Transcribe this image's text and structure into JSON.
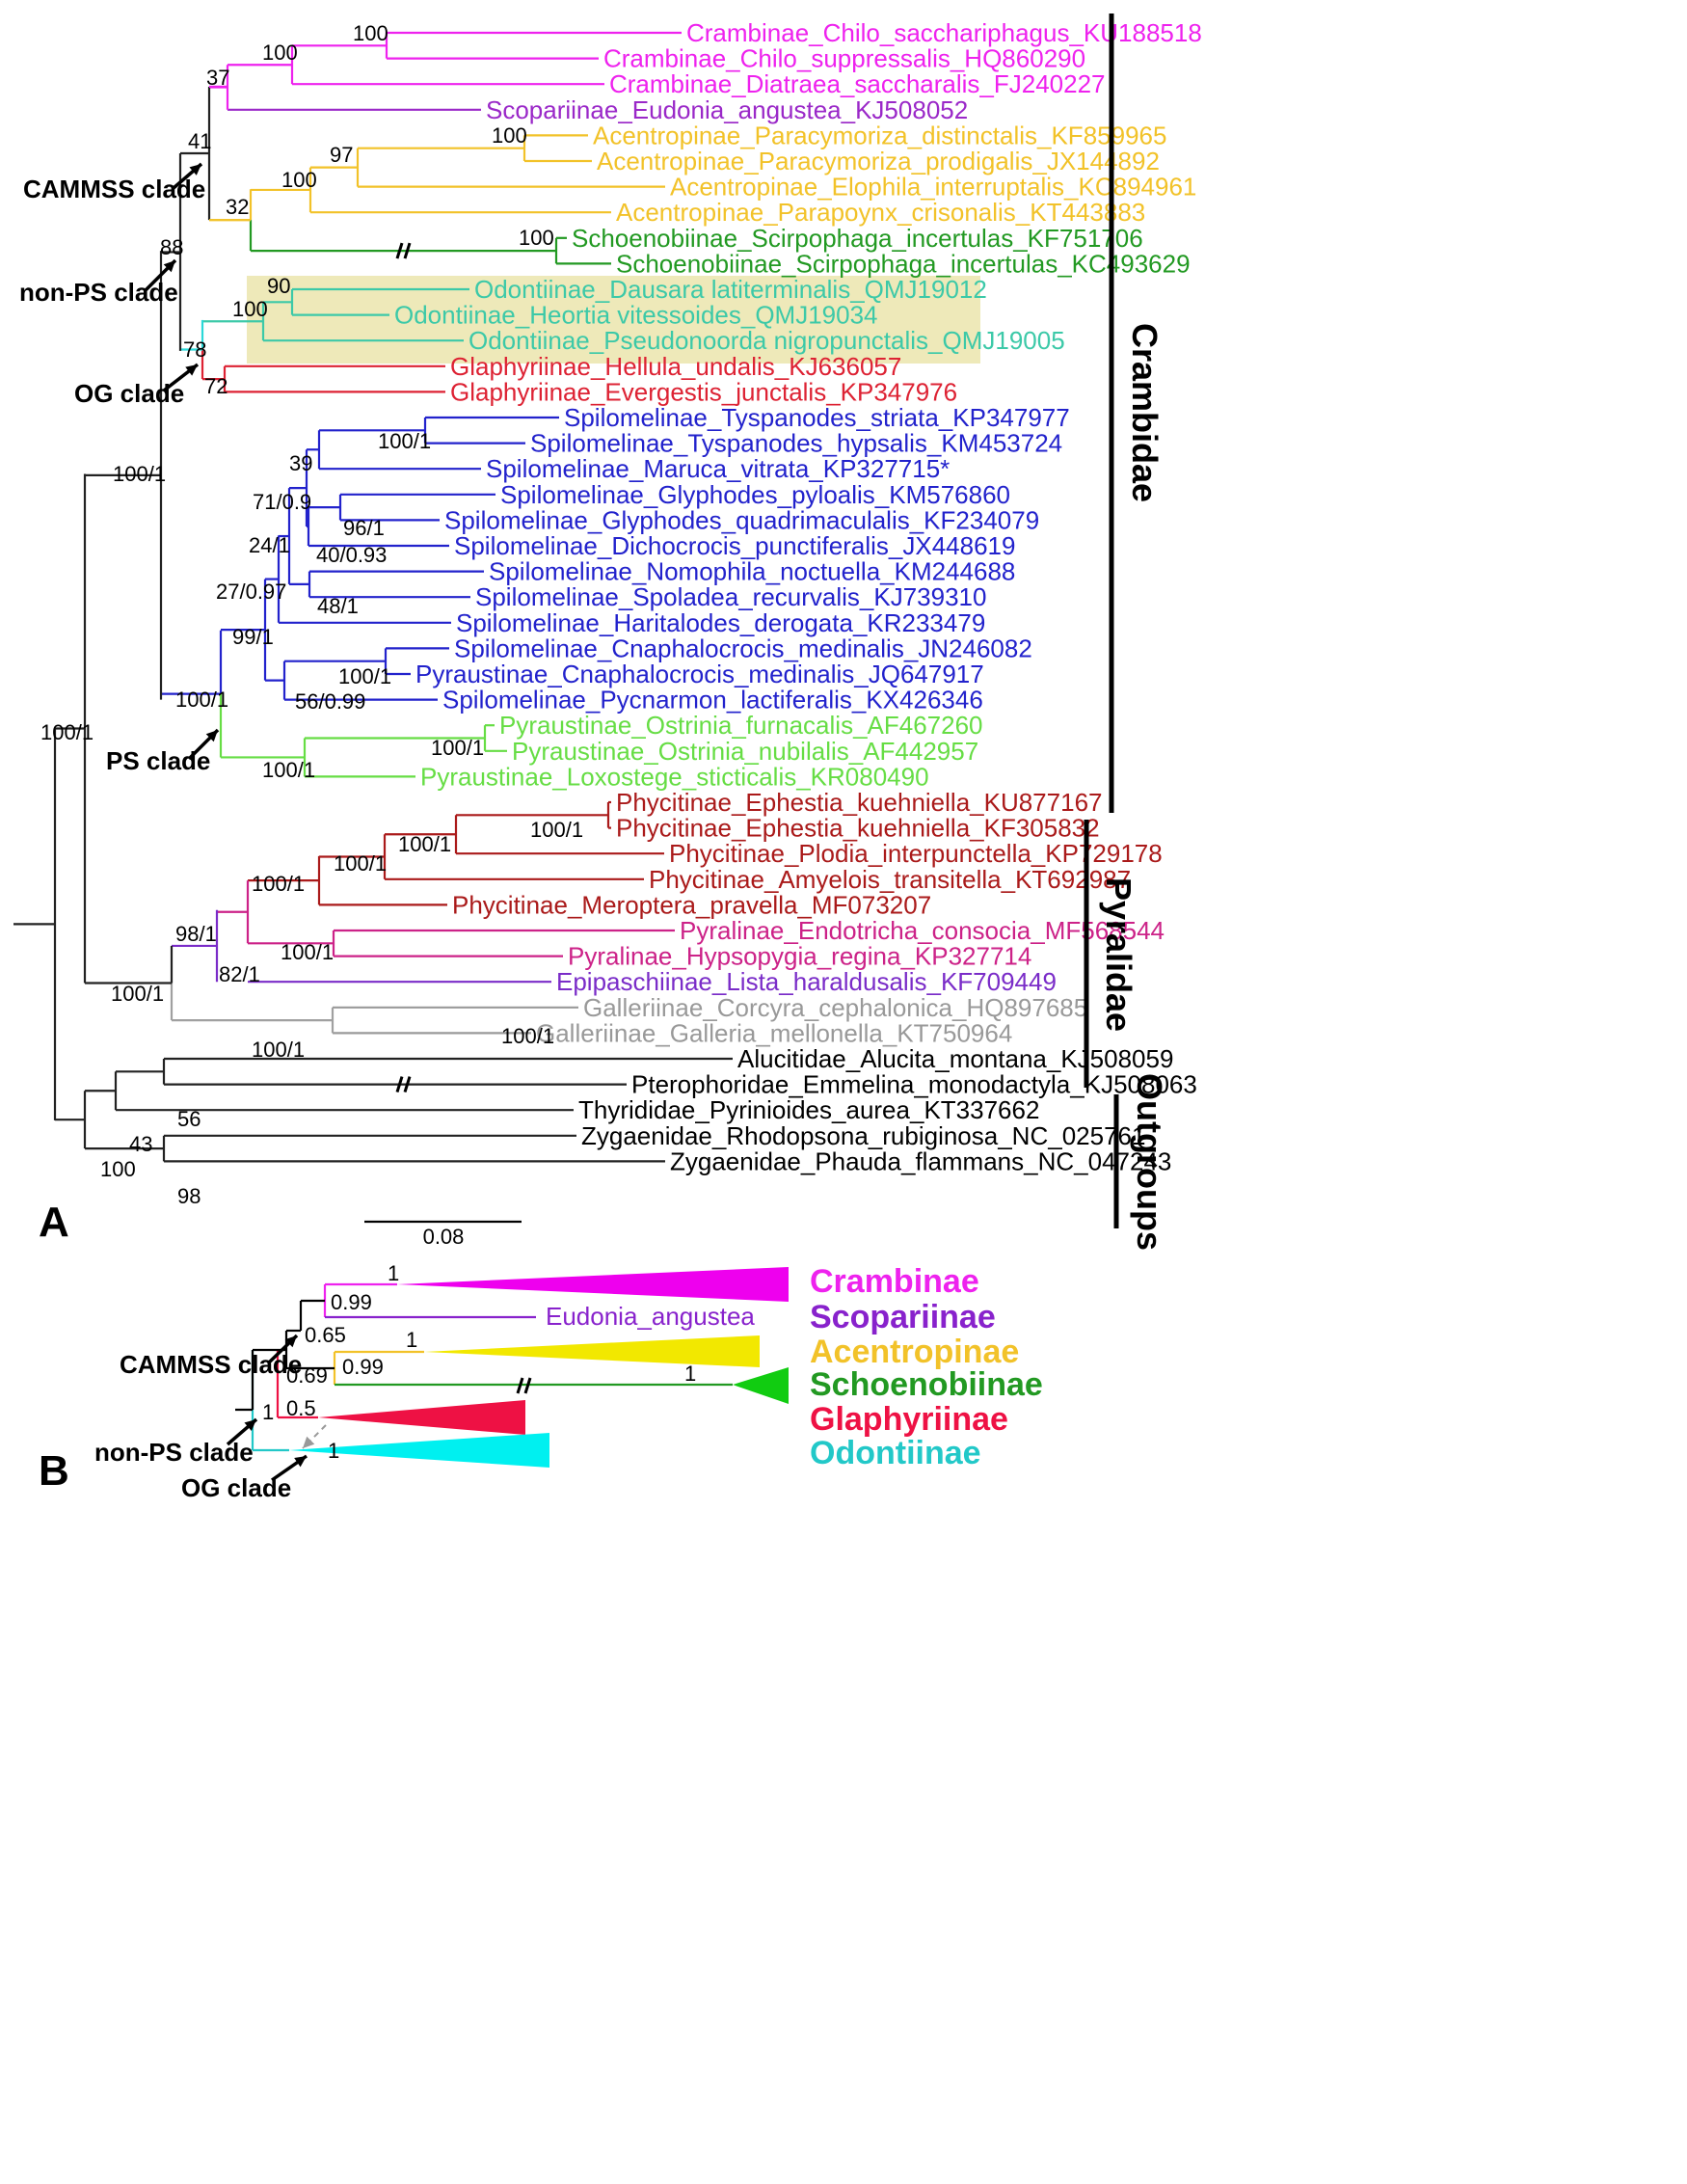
{
  "panel_a": {
    "label": "A",
    "scale_bar": "0.08",
    "families": [
      {
        "name": "Crambidae"
      },
      {
        "name": "Pyralidae"
      },
      {
        "name": "Outgroups"
      }
    ],
    "clade_notes": [
      {
        "label": "CAMMSS clade"
      },
      {
        "label": "non-PS clade"
      },
      {
        "label": "OG clade"
      },
      {
        "label": "PS clade"
      }
    ],
    "taxa": [
      {
        "label": "Crambinae_Chilo_sacchariphagus_KU188518",
        "color": "#ee22ee"
      },
      {
        "label": "Crambinae_Chilo_suppressalis_HQ860290",
        "color": "#ee22ee"
      },
      {
        "label": "Crambinae_Diatraea_saccharalis_FJ240227",
        "color": "#ee22ee"
      },
      {
        "label": "Scopariinae_Eudonia_angustea_KJ508052",
        "color": "#9a28c8"
      },
      {
        "label": "Acentropinae_Paracymoriza_distinctalis_KF859965",
        "color": "#f2c229"
      },
      {
        "label": "Acentropinae_Paracymoriza_prodigalis_JX144892",
        "color": "#f2c229"
      },
      {
        "label": "Acentropinae_Elophila_interruptalis_KC894961",
        "color": "#f2c229"
      },
      {
        "label": "Acentropinae_Parapoynx_crisonalis_KT443883",
        "color": "#f2c229"
      },
      {
        "label": "Schoenobiinae_Scirpophaga_incertulas_KF751706",
        "color": "#229922"
      },
      {
        "label": "Schoenobiinae_Scirpophaga_incertulas_KC493629",
        "color": "#229922"
      },
      {
        "label": "Odontiinae_Dausara latiterminalis_QMJ19012",
        "color": "#3cc9a8"
      },
      {
        "label": "Odontiinae_Heortia vitessoides_QMJ19034",
        "color": "#3cc9a8"
      },
      {
        "label": "Odontiinae_Pseudonoorda nigropunctalis_QMJ19005",
        "color": "#3cc9a8"
      },
      {
        "label": "Glaphyriinae_Hellula_undalis_KJ636057",
        "color": "#dd2233"
      },
      {
        "label": "Glaphyriinae_Evergestis_junctalis_KP347976",
        "color": "#dd2233"
      },
      {
        "label": "Spilomelinae_Tyspanodes_striata_KP347977",
        "color": "#2222cc"
      },
      {
        "label": "Spilomelinae_Tyspanodes_hypsalis_KM453724",
        "color": "#2222cc"
      },
      {
        "label": "Spilomelinae_Maruca_vitrata_KP327715*",
        "color": "#2222cc"
      },
      {
        "label": "Spilomelinae_Glyphodes_pyloalis_KM576860",
        "color": "#2222cc"
      },
      {
        "label": "Spilomelinae_Glyphodes_quadrimaculalis_KF234079",
        "color": "#2222cc"
      },
      {
        "label": "Spilomelinae_Dichocrocis_punctiferalis_JX448619",
        "color": "#2222cc"
      },
      {
        "label": "Spilomelinae_Nomophila_noctuella_KM244688",
        "color": "#2222cc"
      },
      {
        "label": "Spilomelinae_Spoladea_recurvalis_KJ739310",
        "color": "#2222cc"
      },
      {
        "label": "Spilomelinae_Haritalodes_derogata_KR233479",
        "color": "#2222cc"
      },
      {
        "label": "Spilomelinae_Cnaphalocrocis_medinalis_JN246082",
        "color": "#2222cc"
      },
      {
        "label": "Pyraustinae_Cnaphalocrocis_medinalis_JQ647917",
        "color": "#2222cc"
      },
      {
        "label": "Spilomelinae_Pycnarmon_lactiferalis_KX426346",
        "color": "#2222cc"
      },
      {
        "label": "Pyraustinae_Ostrinia_furnacalis_AF467260",
        "color": "#66dd44"
      },
      {
        "label": "Pyraustinae_Ostrinia_nubilalis_AF442957",
        "color": "#66dd44"
      },
      {
        "label": "Pyraustinae_Loxostege_sticticalis_KR080490",
        "color": "#66dd44"
      },
      {
        "label": "Phycitinae_Ephestia_kuehniella_KU877167",
        "color": "#aa1a1a"
      },
      {
        "label": "Phycitinae_Ephestia_kuehniella_KF305832",
        "color": "#aa1a1a"
      },
      {
        "label": "Phycitinae_Plodia_interpunctella_KP729178",
        "color": "#aa1a1a"
      },
      {
        "label": "Phycitinae_Amyelois_transitella_KT692987",
        "color": "#aa1a1a"
      },
      {
        "label": "Phycitinae_Meroptera_pravella_MF073207",
        "color": "#aa1a1a"
      },
      {
        "label": "Pyralinae_Endotricha_consocia_MF568544",
        "color": "#cc2288"
      },
      {
        "label": "Pyralinae_Hypsopygia_regina_KP327714",
        "color": "#cc2288"
      },
      {
        "label": "Epipaschiinae_Lista_haraldusalis_KF709449",
        "color": "#7a2cc8"
      },
      {
        "label": "Galleriinae_Corcyra_cephalonica_HQ897685",
        "color": "#999999"
      },
      {
        "label": "Galleriinae_Galleria_mellonella_KT750964",
        "color": "#999999"
      },
      {
        "label": "Alucitidae_Alucita_montana_KJ508059",
        "color": "#000000"
      },
      {
        "label": "Pterophoridae_Emmelina_monodactyla_KJ508063",
        "color": "#000000"
      },
      {
        "label": "Thyrididae_Pyrinioides_aurea_KT337662",
        "color": "#000000"
      },
      {
        "label": "Zygaenidae_Rhodopsona_rubiginosa_NC_025761",
        "color": "#000000"
      },
      {
        "label": "Zygaenidae_Phauda_flammans_NC_047243",
        "color": "#000000"
      }
    ],
    "support_values": [
      "100",
      "100",
      "37",
      "41",
      "88",
      "97",
      "100",
      "100",
      "32",
      "100",
      "90",
      "100",
      "78",
      "72",
      "100/1",
      "39",
      "71/0.9",
      "96/1",
      "40/0.93",
      "24/1",
      "48/1",
      "27/0.97",
      "100/1",
      "56/0.99",
      "99/1",
      "100/1",
      "100/1",
      "100/1",
      "100/1",
      "100/1",
      "100/1",
      "100/1",
      "98/1",
      "82/1",
      "100/1",
      "100/1",
      "100/1",
      "100/1",
      "56",
      "43",
      "100",
      "98",
      "100/1"
    ]
  },
  "panel_b": {
    "label": "B",
    "clade_notes": [
      {
        "label": "CAMMSS clade"
      },
      {
        "label": "non-PS clade"
      },
      {
        "label": "OG clade"
      }
    ],
    "tip_label": "Eudonia_angustea",
    "support_values": [
      "1",
      "0.99",
      "0.65",
      "1",
      "0.69",
      "0.99",
      "1",
      "0.5",
      "1",
      "1"
    ],
    "legend": [
      {
        "label": "Crambinae",
        "color": "#ee22ee"
      },
      {
        "label": "Scopariinae",
        "color": "#8822cc"
      },
      {
        "label": "Acentropinae",
        "color": "#f2c229"
      },
      {
        "label": "Schoenobiinae",
        "color": "#229922"
      },
      {
        "label": "Glaphyriinae",
        "color": "#ee1144"
      },
      {
        "label": "Odontiinae",
        "color": "#22c8c8"
      }
    ],
    "triangle_colors": [
      "#ee00ee",
      "#f2e800",
      "#11cc11",
      "#ee1144",
      "#00f0f0"
    ]
  }
}
